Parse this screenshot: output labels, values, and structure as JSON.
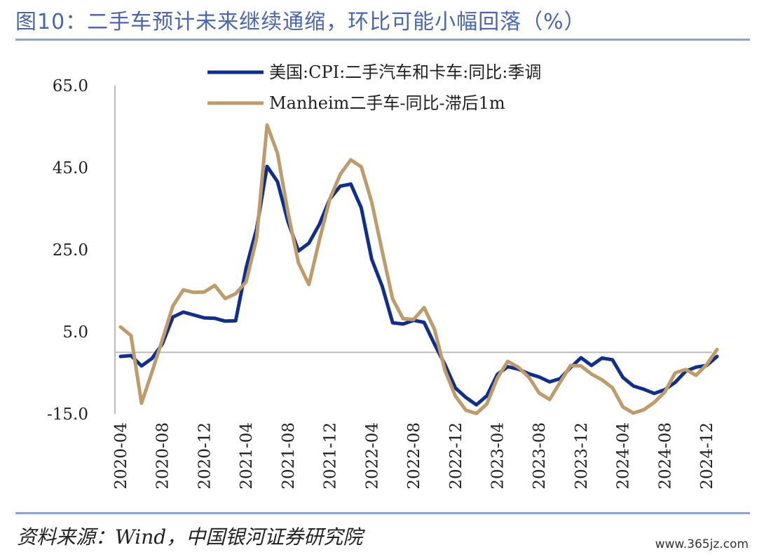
{
  "figure": {
    "title": "图10：二手车预计未来继续通缩，环比可能小幅回落（%）",
    "source": "资料来源：Wind，中国银河证券研究院",
    "watermark": "www.365jz.com"
  },
  "chart_data": {
    "type": "line",
    "title": "",
    "xlabel": "",
    "ylabel": "",
    "ylim": [
      -15,
      65
    ],
    "yticks": [
      "65.0",
      "45.0",
      "25.0",
      "5.0",
      "-15.0"
    ],
    "ytick_values": [
      65,
      45,
      25,
      5,
      -15
    ],
    "grid": false,
    "legend_position": "top",
    "x_tick_labels": [
      "2020-04",
      "2020-08",
      "2020-12",
      "2021-04",
      "2021-08",
      "2021-12",
      "2022-04",
      "2022-08",
      "2022-12",
      "2023-04",
      "2023-08",
      "2023-12",
      "2024-04",
      "2024-08",
      "2024-12"
    ],
    "x": [
      "2020-04",
      "2020-05",
      "2020-06",
      "2020-07",
      "2020-08",
      "2020-09",
      "2020-10",
      "2020-11",
      "2020-12",
      "2021-01",
      "2021-02",
      "2021-03",
      "2021-04",
      "2021-05",
      "2021-06",
      "2021-07",
      "2021-08",
      "2021-09",
      "2021-10",
      "2021-11",
      "2021-12",
      "2022-01",
      "2022-02",
      "2022-03",
      "2022-04",
      "2022-05",
      "2022-06",
      "2022-07",
      "2022-08",
      "2022-09",
      "2022-10",
      "2022-11",
      "2022-12",
      "2023-01",
      "2023-02",
      "2023-03",
      "2023-04",
      "2023-05",
      "2023-06",
      "2023-07",
      "2023-08",
      "2023-09",
      "2023-10",
      "2023-11",
      "2023-12",
      "2024-01",
      "2024-02",
      "2024-03",
      "2024-04",
      "2024-05",
      "2024-06",
      "2024-07",
      "2024-08",
      "2024-09",
      "2024-10",
      "2024-11",
      "2024-12",
      "2025-01"
    ],
    "series": [
      {
        "name": "美国:CPI:二手汽车和卡车:同比:季调",
        "color": "#0f2f8f",
        "values": [
          -1.0,
          -0.8,
          -3.3,
          -1.5,
          2.1,
          8.6,
          9.8,
          9.1,
          8.4,
          8.3,
          7.6,
          7.7,
          20.6,
          30.1,
          45.3,
          41.6,
          31.8,
          24.7,
          26.6,
          31.2,
          37.4,
          40.5,
          41.0,
          35.2,
          22.7,
          16.1,
          7.2,
          6.9,
          7.8,
          7.3,
          2.0,
          -3.0,
          -8.7,
          -11.0,
          -12.8,
          -10.6,
          -5.4,
          -3.5,
          -4.1,
          -5.2,
          -6.0,
          -7.2,
          -6.4,
          -3.7,
          -1.3,
          -3.2,
          -1.4,
          -1.8,
          -6.1,
          -8.2,
          -9.0,
          -10.0,
          -9.1,
          -7.3,
          -4.6,
          -3.6,
          -3.2,
          -1.0
        ]
      },
      {
        "name": "Manheim二手车-同比-滞后1m",
        "color": "#bf9b69",
        "values": [
          6.2,
          4.1,
          -12.4,
          -4.8,
          3.1,
          11.3,
          15.2,
          14.6,
          14.7,
          16.3,
          13.1,
          14.3,
          17.2,
          27.8,
          55.4,
          48.5,
          34.0,
          21.8,
          16.5,
          27.4,
          37.4,
          43.4,
          46.9,
          45.2,
          36.6,
          24.6,
          13.0,
          8.2,
          8.0,
          10.9,
          5.6,
          -4.4,
          -10.7,
          -14.1,
          -14.9,
          -12.6,
          -6.3,
          -2.2,
          -3.6,
          -6.0,
          -9.9,
          -11.5,
          -7.3,
          -3.2,
          -3.3,
          -5.3,
          -6.7,
          -8.6,
          -13.3,
          -14.8,
          -14.0,
          -12.2,
          -9.7,
          -5.0,
          -4.2,
          -5.6,
          -3.0,
          0.7
        ]
      }
    ]
  }
}
